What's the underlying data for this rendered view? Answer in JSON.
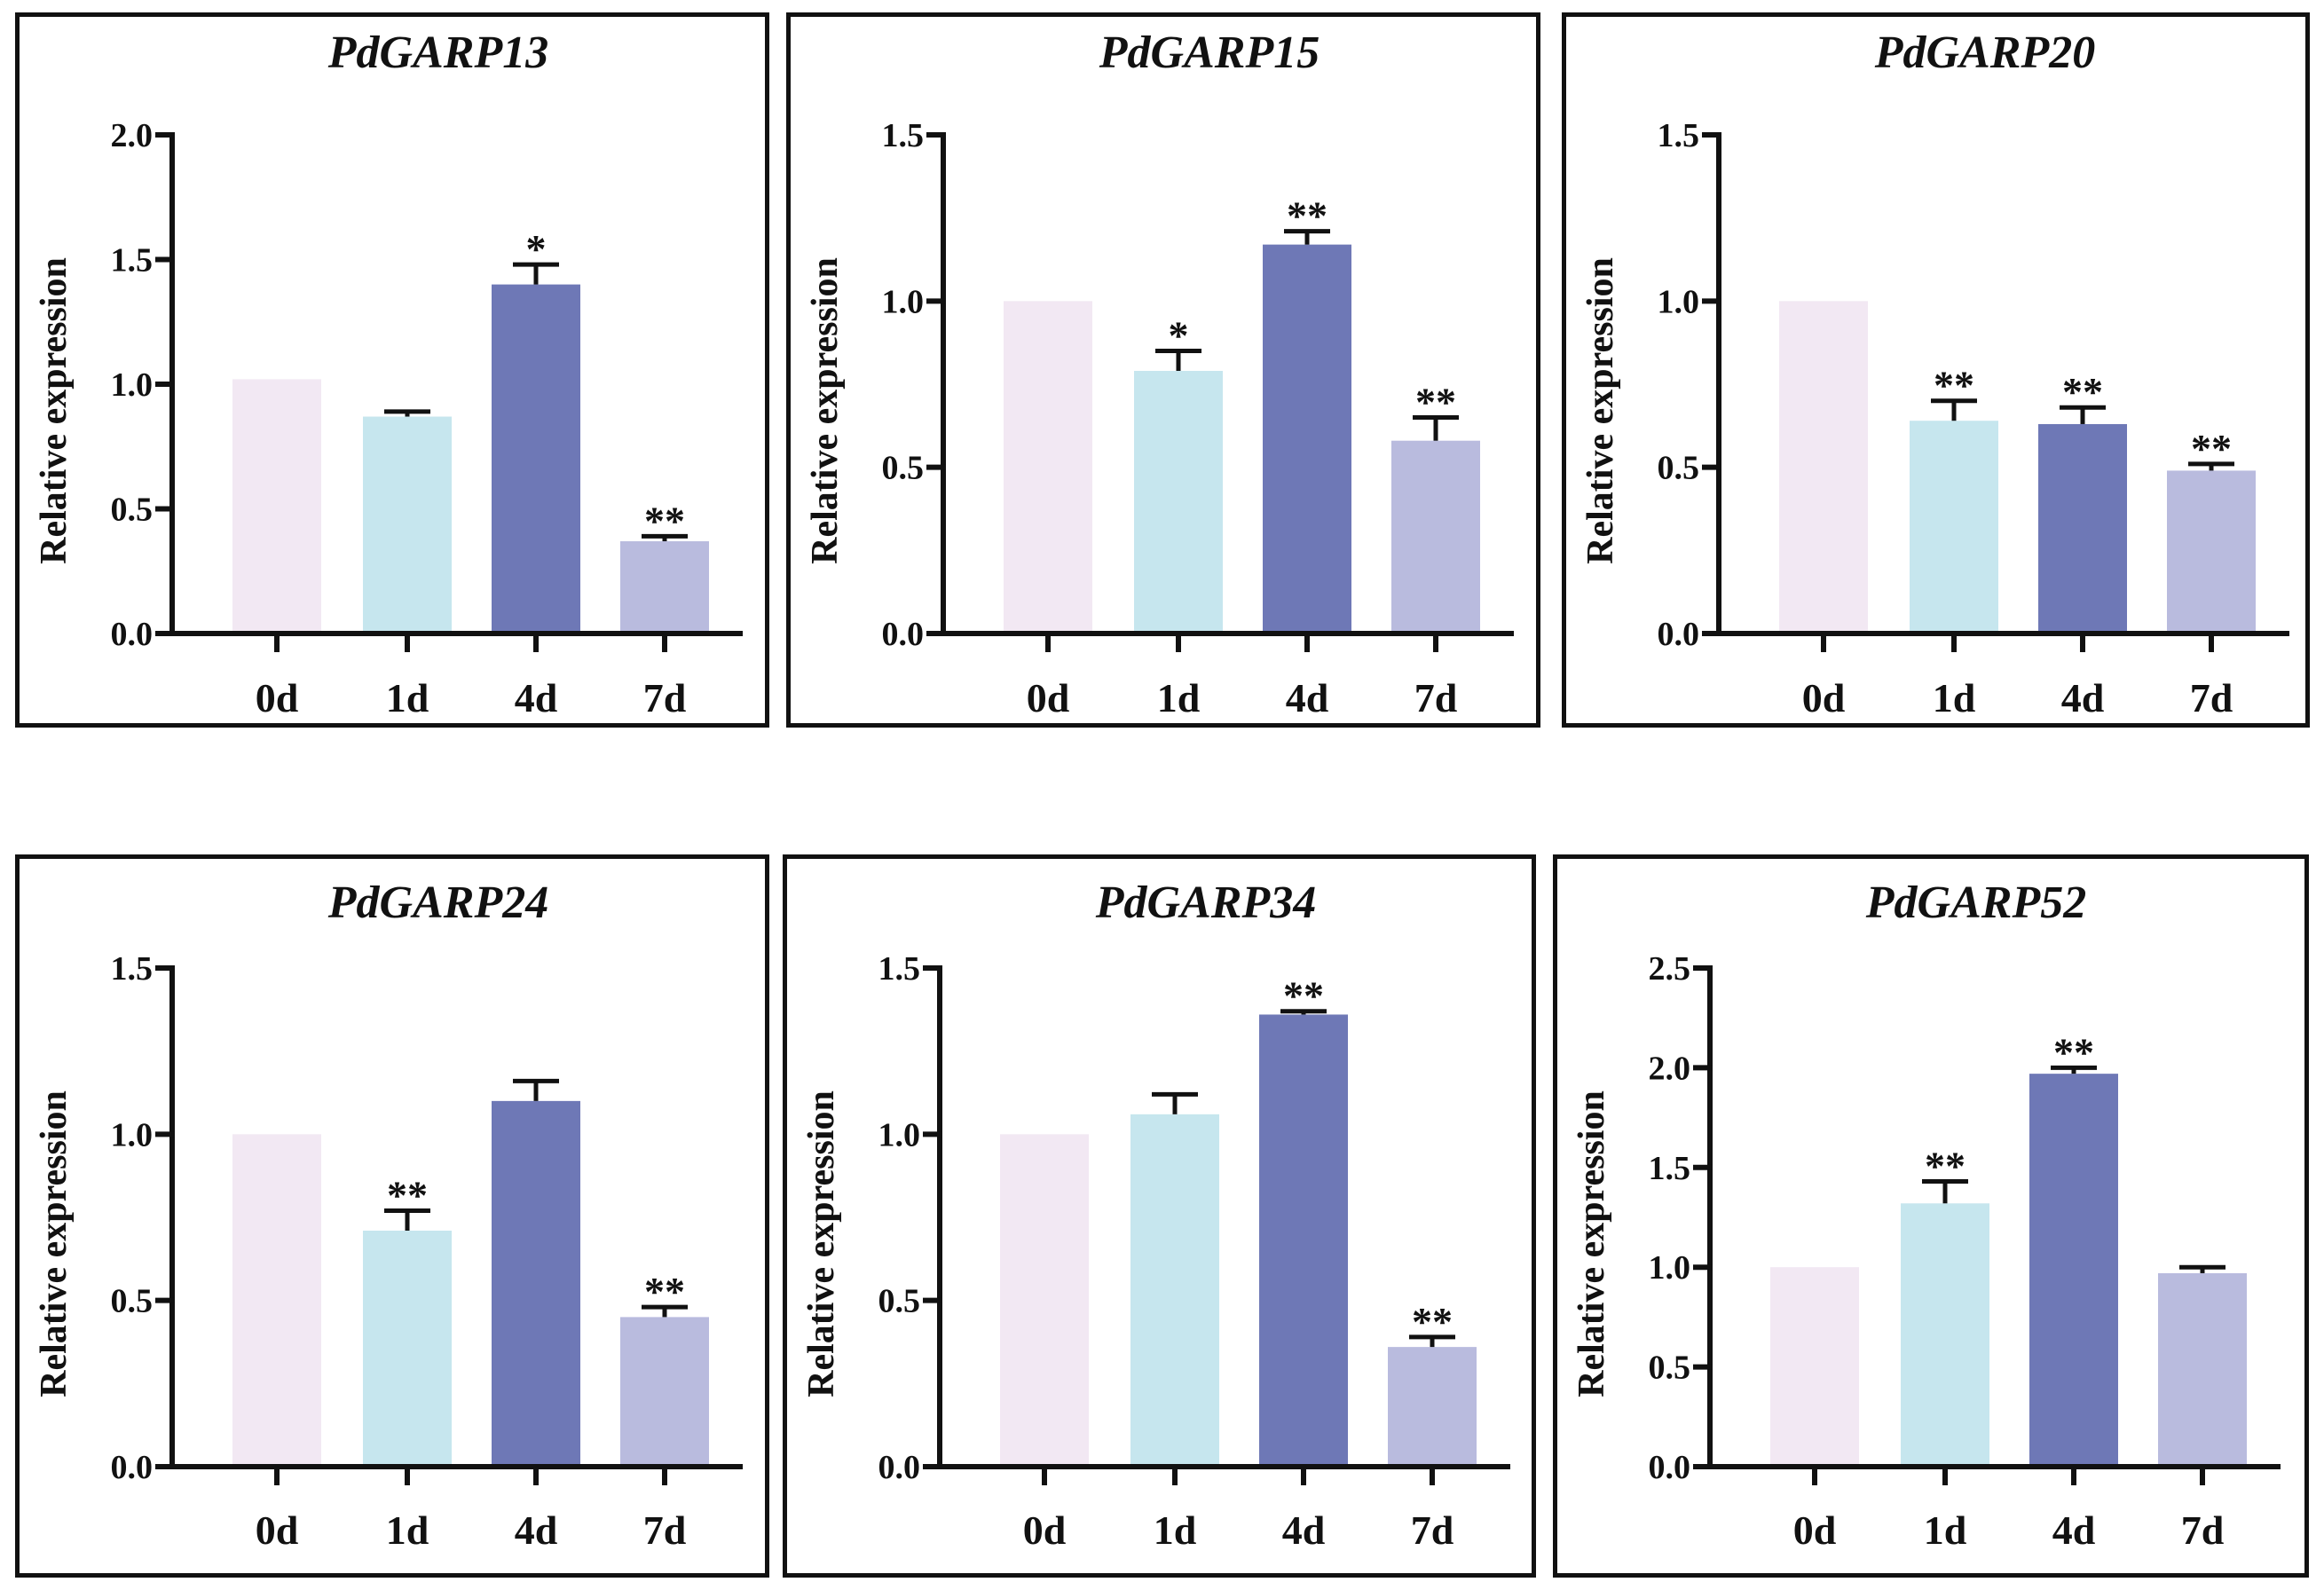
{
  "figure": {
    "colors": {
      "0d": "#f2e8f3",
      "1d": "#c6e6ee",
      "4d": "#6e78b6",
      "7d": "#b9bbde",
      "axis": "#111111"
    }
  },
  "chart_data": [
    {
      "type": "bar",
      "title": "PdGARP13",
      "ylabel": "Relative expression",
      "xlabel": "",
      "categories": [
        "0d",
        "1d",
        "4d",
        "7d"
      ],
      "values": [
        1.02,
        0.87,
        1.4,
        0.37
      ],
      "errors": [
        0.0,
        0.02,
        0.08,
        0.02
      ],
      "significance": [
        "",
        "",
        "*",
        "**"
      ],
      "ylim": [
        0,
        2.0
      ],
      "yticks": [
        "0.0",
        "0.5",
        "1.0",
        "1.5",
        "2.0"
      ]
    },
    {
      "type": "bar",
      "title": "PdGARP15",
      "ylabel": "Relative expression",
      "xlabel": "",
      "categories": [
        "0d",
        "1d",
        "4d",
        "7d"
      ],
      "values": [
        1.0,
        0.79,
        1.17,
        0.58
      ],
      "errors": [
        0.0,
        0.06,
        0.04,
        0.07
      ],
      "significance": [
        "",
        "*",
        "**",
        "**"
      ],
      "ylim": [
        0,
        1.5
      ],
      "yticks": [
        "0.0",
        "0.5",
        "1.0",
        "1.5"
      ]
    },
    {
      "type": "bar",
      "title": "PdGARP20",
      "ylabel": "Relative expression",
      "xlabel": "",
      "categories": [
        "0d",
        "1d",
        "4d",
        "7d"
      ],
      "values": [
        1.0,
        0.64,
        0.63,
        0.49
      ],
      "errors": [
        0.0,
        0.06,
        0.05,
        0.02
      ],
      "significance": [
        "",
        "**",
        "**",
        "**"
      ],
      "ylim": [
        0,
        1.5
      ],
      "yticks": [
        "0.0",
        "0.5",
        "1.0",
        "1.5"
      ]
    },
    {
      "type": "bar",
      "title": "PdGARP24",
      "ylabel": "Relative expression",
      "xlabel": "",
      "categories": [
        "0d",
        "1d",
        "4d",
        "7d"
      ],
      "values": [
        1.0,
        0.71,
        1.1,
        0.45
      ],
      "errors": [
        0.0,
        0.06,
        0.06,
        0.03
      ],
      "significance": [
        "",
        "**",
        "",
        "**"
      ],
      "ylim": [
        0,
        1.5
      ],
      "yticks": [
        "0.0",
        "0.5",
        "1.0",
        "1.5"
      ]
    },
    {
      "type": "bar",
      "title": "PdGARP34",
      "ylabel": "Relative expression",
      "xlabel": "",
      "categories": [
        "0d",
        "1d",
        "4d",
        "7d"
      ],
      "values": [
        1.0,
        1.06,
        1.36,
        0.36
      ],
      "errors": [
        0.0,
        0.06,
        0.01,
        0.03
      ],
      "significance": [
        "",
        "",
        "**",
        "**"
      ],
      "ylim": [
        0,
        1.5
      ],
      "yticks": [
        "0.0",
        "0.5",
        "1.0",
        "1.5"
      ]
    },
    {
      "type": "bar",
      "title": "PdGARP52",
      "ylabel": "Relative expression",
      "xlabel": "",
      "categories": [
        "0d",
        "1d",
        "4d",
        "7d"
      ],
      "values": [
        1.0,
        1.32,
        1.97,
        0.97
      ],
      "errors": [
        0.0,
        0.11,
        0.03,
        0.03
      ],
      "significance": [
        "",
        "**",
        "**",
        ""
      ],
      "ylim": [
        0,
        2.5
      ],
      "yticks": [
        "0.0",
        "0.5",
        "1.0",
        "1.5",
        "2.0",
        "2.5"
      ]
    }
  ]
}
